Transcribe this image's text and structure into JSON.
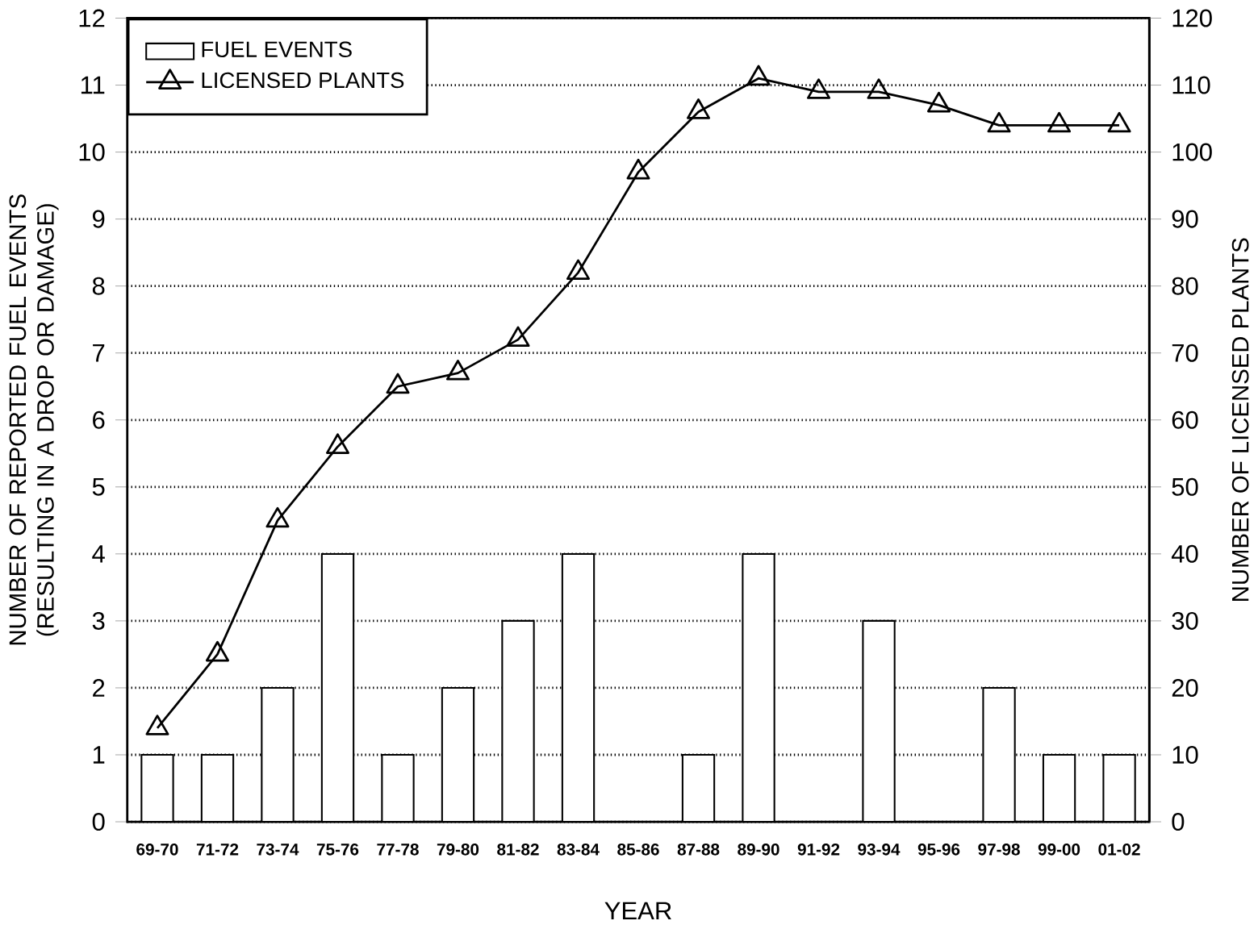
{
  "chart_data": {
    "type": "bar",
    "xlabel": "YEAR",
    "ylabel": "NUMBER OF REPORTED FUEL EVENTS (RESULTING IN A DROP OR DAMAGE)",
    "y2label": "NUMBER OF LICENSED PLANTS",
    "categories": [
      "69-70",
      "71-72",
      "73-74",
      "75-76",
      "77-78",
      "79-80",
      "81-82",
      "83-84",
      "85-86",
      "87-88",
      "89-90",
      "91-92",
      "93-94",
      "95-96",
      "97-98",
      "99-00",
      "01-02"
    ],
    "series": [
      {
        "name": "FUEL EVENTS",
        "color": "#000000",
        "values": [
          1,
          1,
          2,
          4,
          1,
          2,
          3,
          4,
          0,
          1,
          4,
          0,
          3,
          0,
          2,
          1,
          1
        ]
      },
      {
        "name": "LICENSED PLANTS",
        "type": "line",
        "axis": "y2",
        "color": "#000000",
        "marker": "triangle",
        "values": [
          14,
          25,
          45,
          56,
          65,
          67,
          72,
          82,
          97,
          106,
          111,
          109,
          109,
          107,
          104,
          104,
          104
        ]
      }
    ],
    "ylim": [
      0,
      12
    ],
    "yticks": [
      0,
      1,
      2,
      3,
      4,
      5,
      6,
      7,
      8,
      9,
      10,
      11,
      12
    ],
    "y2lim": [
      0,
      120
    ],
    "y2ticks": [
      0,
      10,
      20,
      30,
      40,
      50,
      60,
      70,
      80,
      90,
      100,
      110,
      120
    ],
    "grid": "y",
    "legend": "top left"
  }
}
